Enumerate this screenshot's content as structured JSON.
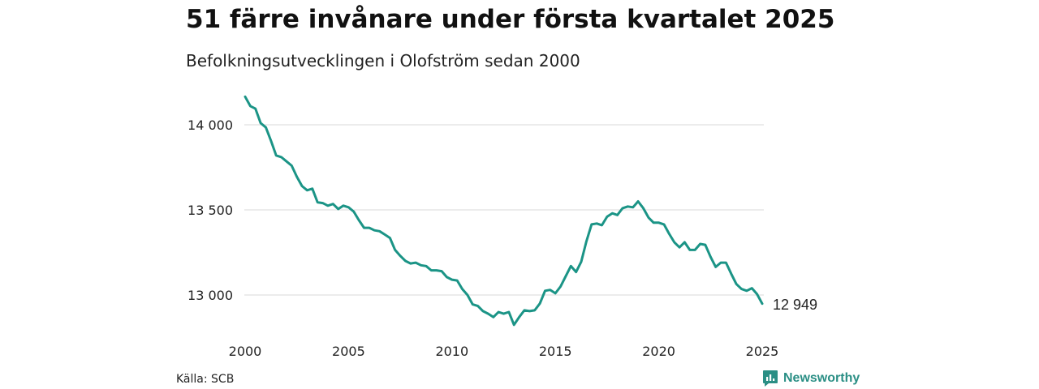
{
  "title": "51 färre invånare under första kvartalet 2025",
  "subtitle": "Befolkningsutvecklingen i Olofström sedan 2000",
  "source": "Källa: SCB",
  "brand": {
    "name": "Newsworthy",
    "color": "#2b8f85",
    "icon": "newsworthy-logo-icon"
  },
  "colors": {
    "line": "#1b9486",
    "grid": "#d9d9d9",
    "text": "#222222"
  },
  "chart_data": {
    "type": "line",
    "title": "51 färre invånare under första kvartalet 2025",
    "subtitle": "Befolkningsutvecklingen i Olofström sedan 2000",
    "xlabel": "",
    "ylabel": "",
    "x_ticks": [
      "2000",
      "2005",
      "2010",
      "2015",
      "2020",
      "2025"
    ],
    "y_ticks": [
      {
        "value": 13000,
        "label": "13 000"
      },
      {
        "value": 13500,
        "label": "13 500"
      },
      {
        "value": 14000,
        "label": "14 000"
      }
    ],
    "xlim": [
      2000,
      2025
    ],
    "ylim": [
      12780,
      14170
    ],
    "grid": "horizontal",
    "end_label": "12 949",
    "series": [
      {
        "values": [
          [
            2000.0,
            14165
          ],
          [
            2000.25,
            14110
          ],
          [
            2000.5,
            14095
          ],
          [
            2000.75,
            14010
          ],
          [
            2001.0,
            13985
          ],
          [
            2001.25,
            13905
          ],
          [
            2001.5,
            13820
          ],
          [
            2001.75,
            13810
          ],
          [
            2002.0,
            13785
          ],
          [
            2002.25,
            13760
          ],
          [
            2002.5,
            13695
          ],
          [
            2002.75,
            13640
          ],
          [
            2003.0,
            13615
          ],
          [
            2003.25,
            13625
          ],
          [
            2003.5,
            13545
          ],
          [
            2003.75,
            13540
          ],
          [
            2004.0,
            13525
          ],
          [
            2004.25,
            13535
          ],
          [
            2004.5,
            13505
          ],
          [
            2004.75,
            13525
          ],
          [
            2005.0,
            13515
          ],
          [
            2005.25,
            13490
          ],
          [
            2005.5,
            13440
          ],
          [
            2005.75,
            13395
          ],
          [
            2006.0,
            13395
          ],
          [
            2006.25,
            13380
          ],
          [
            2006.5,
            13375
          ],
          [
            2006.75,
            13355
          ],
          [
            2007.0,
            13335
          ],
          [
            2007.25,
            13265
          ],
          [
            2007.5,
            13230
          ],
          [
            2007.75,
            13200
          ],
          [
            2008.0,
            13185
          ],
          [
            2008.25,
            13190
          ],
          [
            2008.5,
            13175
          ],
          [
            2008.75,
            13170
          ],
          [
            2009.0,
            13145
          ],
          [
            2009.25,
            13145
          ],
          [
            2009.5,
            13140
          ],
          [
            2009.75,
            13105
          ],
          [
            2010.0,
            13090
          ],
          [
            2010.25,
            13085
          ],
          [
            2010.5,
            13035
          ],
          [
            2010.75,
            13000
          ],
          [
            2011.0,
            12945
          ],
          [
            2011.25,
            12935
          ],
          [
            2011.5,
            12905
          ],
          [
            2011.75,
            12890
          ],
          [
            2012.0,
            12870
          ],
          [
            2012.25,
            12900
          ],
          [
            2012.5,
            12890
          ],
          [
            2012.75,
            12900
          ],
          [
            2013.0,
            12825
          ],
          [
            2013.25,
            12870
          ],
          [
            2013.5,
            12910
          ],
          [
            2013.75,
            12905
          ],
          [
            2014.0,
            12910
          ],
          [
            2014.25,
            12950
          ],
          [
            2014.5,
            13025
          ],
          [
            2014.75,
            13030
          ],
          [
            2015.0,
            13010
          ],
          [
            2015.25,
            13050
          ],
          [
            2015.5,
            13110
          ],
          [
            2015.75,
            13170
          ],
          [
            2016.0,
            13135
          ],
          [
            2016.25,
            13195
          ],
          [
            2016.5,
            13315
          ],
          [
            2016.75,
            13415
          ],
          [
            2017.0,
            13420
          ],
          [
            2017.25,
            13410
          ],
          [
            2017.5,
            13460
          ],
          [
            2017.75,
            13480
          ],
          [
            2018.0,
            13470
          ],
          [
            2018.25,
            13510
          ],
          [
            2018.5,
            13520
          ],
          [
            2018.75,
            13515
          ],
          [
            2019.0,
            13550
          ],
          [
            2019.25,
            13510
          ],
          [
            2019.5,
            13455
          ],
          [
            2019.75,
            13425
          ],
          [
            2020.0,
            13425
          ],
          [
            2020.25,
            13415
          ],
          [
            2020.5,
            13360
          ],
          [
            2020.75,
            13310
          ],
          [
            2021.0,
            13280
          ],
          [
            2021.25,
            13310
          ],
          [
            2021.5,
            13265
          ],
          [
            2021.75,
            13265
          ],
          [
            2022.0,
            13300
          ],
          [
            2022.25,
            13295
          ],
          [
            2022.5,
            13225
          ],
          [
            2022.75,
            13165
          ],
          [
            2023.0,
            13190
          ],
          [
            2023.25,
            13190
          ],
          [
            2023.5,
            13125
          ],
          [
            2023.75,
            13065
          ],
          [
            2024.0,
            13035
          ],
          [
            2024.25,
            13025
          ],
          [
            2024.5,
            13040
          ],
          [
            2024.75,
            13005
          ],
          [
            2025.0,
            12949
          ]
        ]
      }
    ]
  }
}
